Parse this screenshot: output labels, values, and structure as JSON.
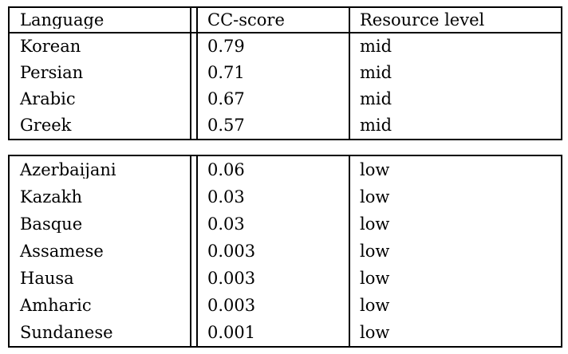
{
  "table": {
    "text_color": "#000000",
    "border_color": "#000000",
    "background_color": "#ffffff",
    "header": {
      "language": "Language",
      "cc_score": "CC-score",
      "resource_level": "Resource level"
    },
    "mid_rows": [
      {
        "language": "Korean",
        "cc_score": "0.79",
        "resource_level": "mid"
      },
      {
        "language": "Persian",
        "cc_score": "0.71",
        "resource_level": "mid"
      },
      {
        "language": "Arabic",
        "cc_score": "0.67",
        "resource_level": "mid"
      },
      {
        "language": "Greek",
        "cc_score": "0.57",
        "resource_level": "mid"
      }
    ],
    "low_rows": [
      {
        "language": "Azerbaijani",
        "cc_score": "0.06",
        "resource_level": "low"
      },
      {
        "language": "Kazakh",
        "cc_score": "0.03",
        "resource_level": "low"
      },
      {
        "language": "Basque",
        "cc_score": "0.03",
        "resource_level": "low"
      },
      {
        "language": "Assamese",
        "cc_score": "0.003",
        "resource_level": "low"
      },
      {
        "language": "Hausa",
        "cc_score": "0.003",
        "resource_level": "low"
      },
      {
        "language": "Amharic",
        "cc_score": "0.003",
        "resource_level": "low"
      },
      {
        "language": "Sundanese",
        "cc_score": "0.001",
        "resource_level": "low"
      }
    ]
  }
}
